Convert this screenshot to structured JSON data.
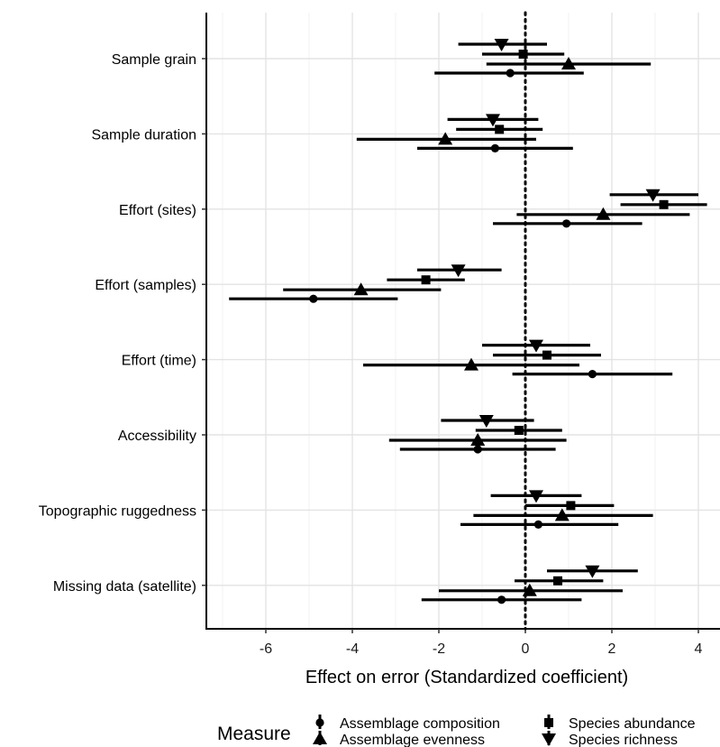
{
  "chart_data": {
    "type": "scatter",
    "subtype": "forest-plot",
    "title": "",
    "xlabel": "Effect on error (Standardized coefficient)",
    "ylabel": "",
    "xlim": [
      -7.4,
      4.5
    ],
    "xticks": [
      -6,
      -4,
      -2,
      0,
      2,
      4
    ],
    "grid": true,
    "reference_line": {
      "x": 0,
      "style": "dotted"
    },
    "categories": [
      "Sample grain",
      "Sample duration",
      "Effort (sites)",
      "Effort (samples)",
      "Effort (time)",
      "Accessibility",
      "Topographic ruggedness",
      "Missing data (satellite)"
    ],
    "legend": {
      "title": "Measure",
      "position": "bottom"
    },
    "series": [
      {
        "name": "Species richness",
        "marker": "triangle-down",
        "estimate": [
          -0.55,
          -0.75,
          2.95,
          -1.55,
          0.25,
          -0.9,
          0.25,
          1.55
        ],
        "lower": [
          -1.55,
          -1.8,
          1.95,
          -2.5,
          -1.0,
          -1.95,
          -0.8,
          0.5
        ],
        "upper": [
          0.5,
          0.3,
          4.0,
          -0.55,
          1.5,
          0.2,
          1.3,
          2.6
        ]
      },
      {
        "name": "Species abundance",
        "marker": "square",
        "estimate": [
          -0.05,
          -0.6,
          3.2,
          -2.3,
          0.5,
          -0.15,
          1.05,
          0.75
        ],
        "lower": [
          -1.0,
          -1.6,
          2.2,
          -3.2,
          -0.75,
          -1.15,
          0.0,
          -0.25
        ],
        "upper": [
          0.9,
          0.4,
          4.2,
          -1.4,
          1.75,
          0.85,
          2.05,
          1.8
        ]
      },
      {
        "name": "Assemblage evenness",
        "marker": "triangle",
        "estimate": [
          1.0,
          -1.85,
          1.8,
          -3.8,
          -1.25,
          -1.1,
          0.85,
          0.1
        ],
        "lower": [
          -0.9,
          -3.9,
          -0.2,
          -5.6,
          -3.75,
          -3.15,
          -1.2,
          -2.0
        ],
        "upper": [
          2.9,
          0.25,
          3.8,
          -1.95,
          1.25,
          0.95,
          2.95,
          2.25
        ]
      },
      {
        "name": "Assemblage composition",
        "marker": "circle",
        "estimate": [
          -0.35,
          -0.7,
          0.95,
          -4.9,
          1.55,
          -1.1,
          0.3,
          -0.55
        ],
        "lower": [
          -2.1,
          -2.5,
          -0.75,
          -6.85,
          -0.3,
          -2.9,
          -1.5,
          -2.4
        ],
        "upper": [
          1.35,
          1.1,
          2.7,
          -2.95,
          3.4,
          0.7,
          2.15,
          1.3
        ]
      }
    ],
    "legend_order": [
      "Assemblage composition",
      "Assemblage evenness",
      "Species abundance",
      "Species richness"
    ]
  }
}
